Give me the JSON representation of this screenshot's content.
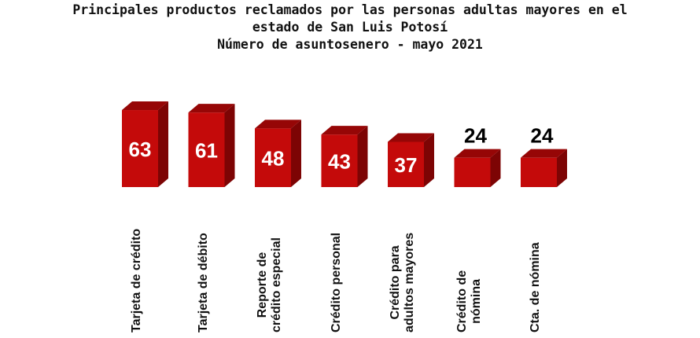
{
  "chart_data": {
    "type": "bar",
    "title_lines": [
      "Principales productos reclamados por las personas adultas mayores en el",
      "estado de San Luis Potosí",
      "Número de asuntosenero - mayo 2021"
    ],
    "categories": [
      "Tarjeta de crédito",
      "Tarjeta de débito",
      "Reporte de\ncrédito especial",
      "Crédito personal",
      "Crédito para\nadultos mayores",
      "Crédito de\nnómina",
      "Cta. de nómina"
    ],
    "values": [
      63,
      61,
      48,
      43,
      37,
      24,
      24
    ],
    "label_positions": [
      "inside",
      "inside",
      "inside",
      "inside",
      "inside",
      "above",
      "above"
    ],
    "bar_color": "#c40a0a",
    "bar_side_color": "#7d0404",
    "bar_top_color": "#960606",
    "grid": false,
    "legend": "none"
  }
}
